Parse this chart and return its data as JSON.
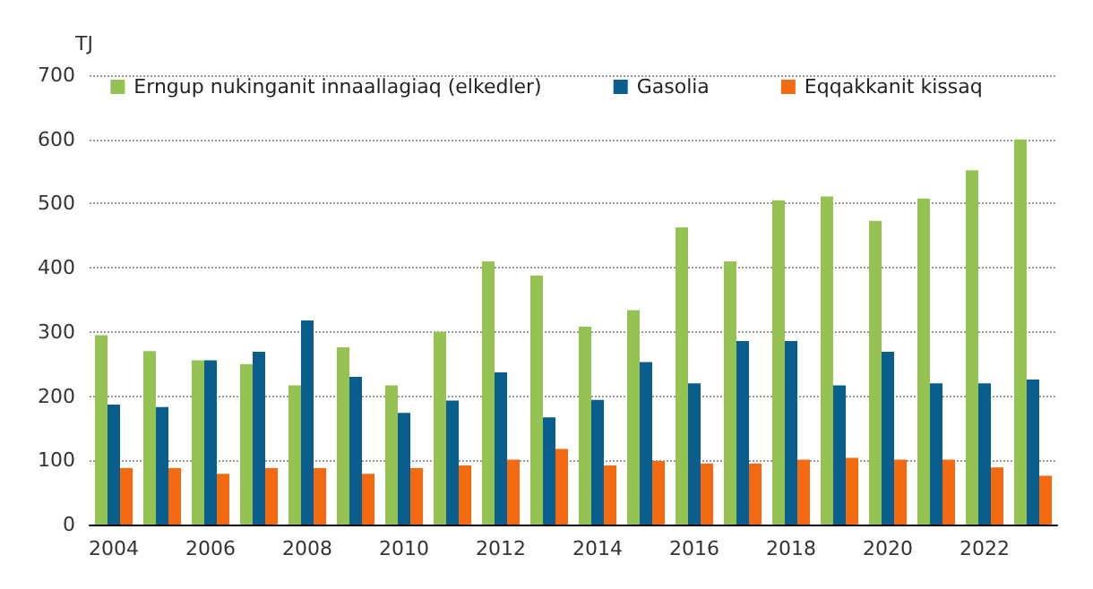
{
  "chart_data": {
    "type": "bar",
    "ylabel": "TJ",
    "categories": [
      "2004",
      null,
      "2006",
      null,
      "2008",
      null,
      "2010",
      null,
      "2012",
      null,
      "2014",
      null,
      "2016",
      null,
      "2018",
      null,
      "2020",
      null,
      "2022",
      null
    ],
    "series": [
      {
        "name": "Erngup nukinganit innaallagiaq (elkedler)",
        "color": "#96c254",
        "values": [
          295,
          270,
          256,
          250,
          217,
          276,
          217,
          300,
          410,
          388,
          308,
          334,
          463,
          410,
          505,
          511,
          473,
          508,
          552,
          600
        ]
      },
      {
        "name": "Gasolia",
        "color": "#0b5d8c",
        "values": [
          187,
          183,
          256,
          269,
          318,
          230,
          174,
          193,
          237,
          167,
          194,
          253,
          220,
          286,
          286,
          217,
          269,
          220,
          220,
          226
        ]
      },
      {
        "name": "Eqqakkanit kissaq",
        "color": "#f26b12",
        "values": [
          88,
          88,
          79,
          88,
          88,
          79,
          88,
          92,
          101,
          118,
          92,
          99,
          95,
          95,
          101,
          104,
          101,
          101,
          89,
          76
        ]
      }
    ],
    "ylim": [
      0,
      700
    ],
    "yticks": [
      0,
      100,
      200,
      300,
      400,
      500,
      600,
      700
    ],
    "grid": "y",
    "legend": "top"
  }
}
